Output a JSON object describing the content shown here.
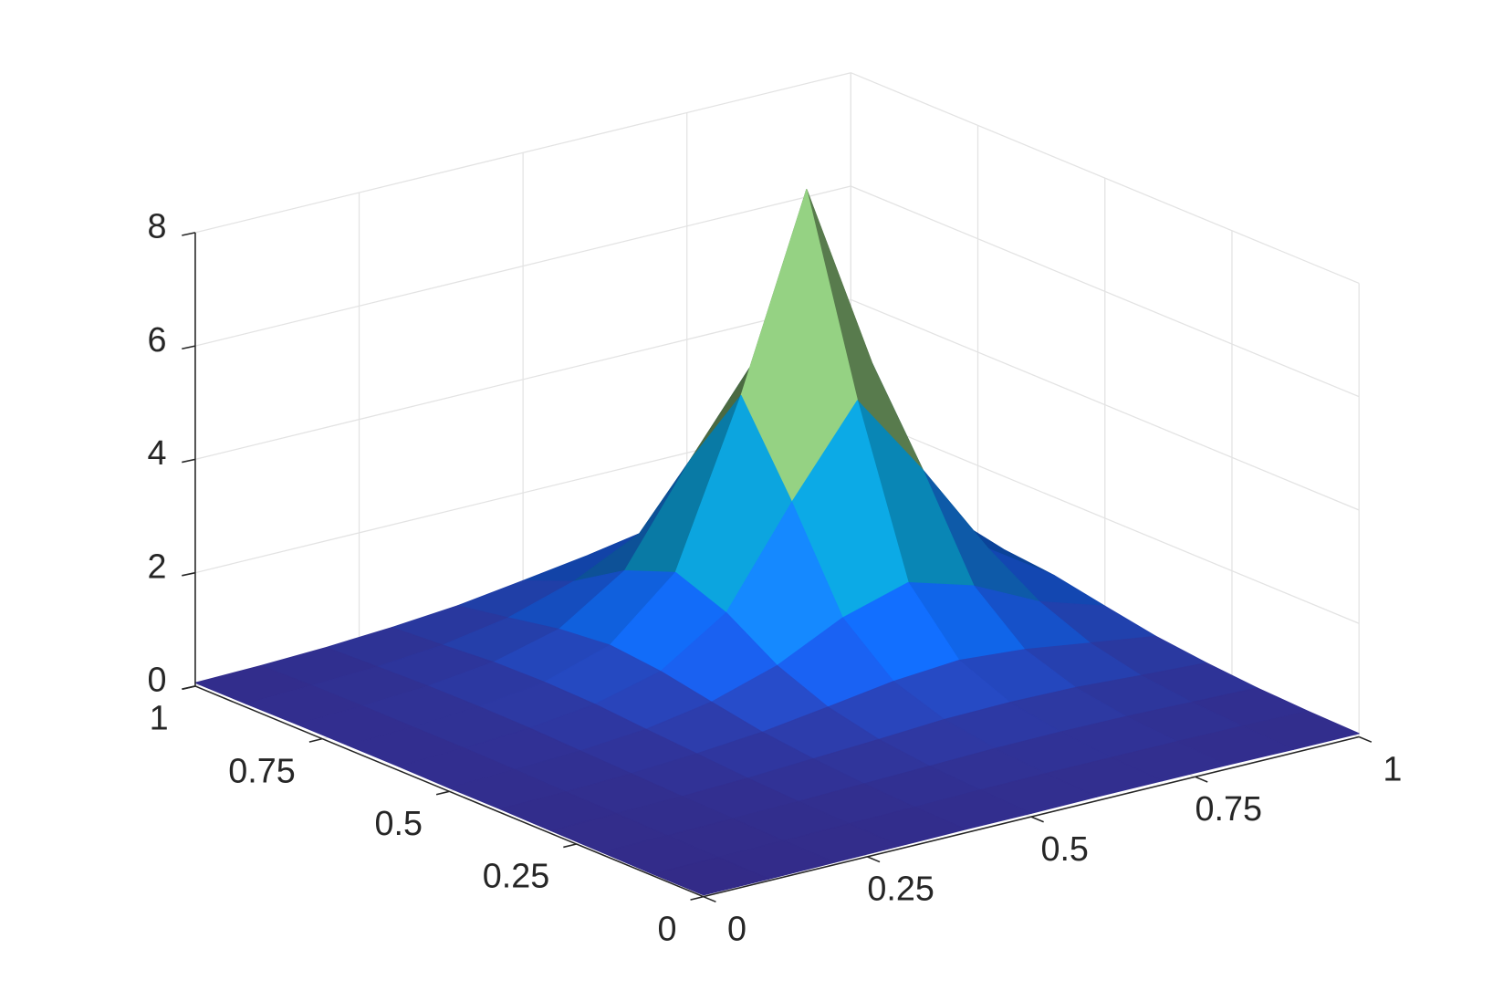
{
  "chart_data": {
    "type": "surface",
    "x": [
      0,
      0.1,
      0.2,
      0.3,
      0.4,
      0.5,
      0.6,
      0.7,
      0.8,
      0.9,
      1
    ],
    "y": [
      0,
      0.1,
      0.2,
      0.3,
      0.4,
      0.5,
      0.6,
      0.7,
      0.8,
      0.9,
      1
    ],
    "z": [
      [
        0.03,
        0.03,
        0.04,
        0.05,
        0.06,
        0.06,
        0.07,
        0.07,
        0.07,
        0.06,
        0.06
      ],
      [
        0.03,
        0.04,
        0.05,
        0.07,
        0.08,
        0.1,
        0.11,
        0.11,
        0.11,
        0.1,
        0.08
      ],
      [
        0.04,
        0.05,
        0.07,
        0.09,
        0.12,
        0.15,
        0.18,
        0.19,
        0.18,
        0.15,
        0.12
      ],
      [
        0.05,
        0.07,
        0.09,
        0.13,
        0.19,
        0.25,
        0.32,
        0.34,
        0.32,
        0.25,
        0.19
      ],
      [
        0.06,
        0.08,
        0.12,
        0.19,
        0.29,
        0.45,
        0.62,
        0.71,
        0.62,
        0.45,
        0.29
      ],
      [
        0.06,
        0.1,
        0.15,
        0.25,
        0.45,
        0.81,
        1.37,
        1.71,
        1.37,
        0.81,
        0.45
      ],
      [
        0.07,
        0.11,
        0.18,
        0.32,
        0.62,
        1.37,
        3.04,
        4.55,
        3.04,
        1.37,
        0.62
      ],
      [
        0.07,
        0.11,
        0.19,
        0.34,
        0.71,
        1.71,
        4.55,
        7.9,
        4.55,
        1.71,
        0.71
      ],
      [
        0.07,
        0.11,
        0.18,
        0.32,
        0.62,
        1.37,
        3.04,
        4.55,
        3.04,
        1.37,
        0.62
      ],
      [
        0.06,
        0.1,
        0.15,
        0.25,
        0.45,
        0.81,
        1.37,
        1.71,
        1.37,
        0.81,
        0.45
      ],
      [
        0.06,
        0.08,
        0.12,
        0.19,
        0.29,
        0.45,
        0.62,
        0.71,
        0.62,
        0.45,
        0.29
      ]
    ],
    "xlim": [
      0,
      1
    ],
    "ylim": [
      0,
      1
    ],
    "zlim": [
      0,
      8
    ],
    "xticks": [
      0,
      0.25,
      0.5,
      0.75,
      1
    ],
    "yticks": [
      0,
      0.25,
      0.5,
      0.75,
      1
    ],
    "zticks": [
      0,
      2,
      4,
      6,
      8
    ],
    "grid": true,
    "colormap": [
      "#352a87",
      "#0f5cdd",
      "#1481d6",
      "#06a4ca",
      "#2eb7a4",
      "#87bf77",
      "#d1bb59",
      "#fec832",
      "#f9fb0e"
    ]
  }
}
